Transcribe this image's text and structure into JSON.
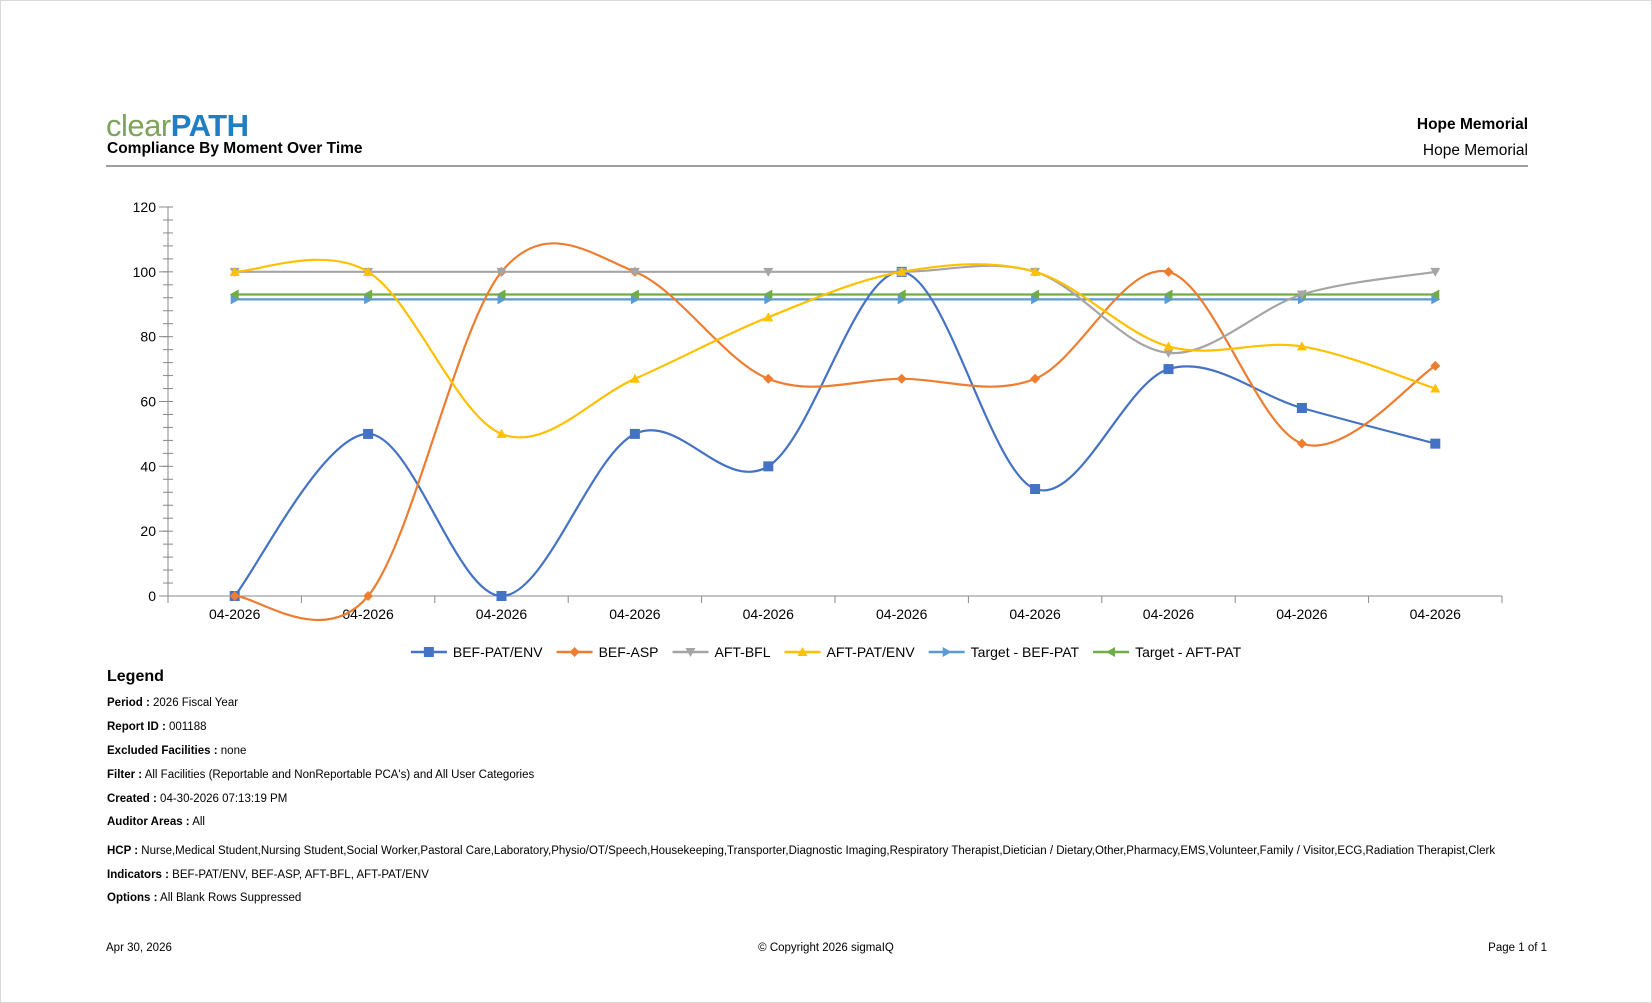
{
  "header": {
    "logo_left": "clear",
    "logo_right": "PATH",
    "report_title": "Compliance By Moment Over Time",
    "facility_bold": "Hope Memorial",
    "facility": "Hope Memorial"
  },
  "chart_data": {
    "type": "line",
    "title": "",
    "xlabel": "",
    "ylabel": "",
    "ylim": [
      0,
      120
    ],
    "y_ticks": [
      0,
      20,
      40,
      60,
      80,
      100,
      120
    ],
    "categories": [
      "04-2026",
      "04-2026",
      "04-2026",
      "04-2026",
      "04-2026",
      "04-2026",
      "04-2026",
      "04-2026",
      "04-2026",
      "04-2026"
    ],
    "legend_position": "bottom",
    "grid": false,
    "smooth": true,
    "series": [
      {
        "name": "BEF-PAT/ENV",
        "color": "#4472c4",
        "marker": "square",
        "values": [
          0,
          50,
          0,
          50,
          40,
          100,
          33,
          70,
          58,
          47
        ]
      },
      {
        "name": "BEF-ASP",
        "color": "#ed7d31",
        "marker": "diamond",
        "values": [
          0,
          0,
          100,
          100,
          67,
          67,
          67,
          100,
          47,
          71
        ]
      },
      {
        "name": "AFT-BFL",
        "color": "#a5a5a5",
        "marker": "triangle-down",
        "values": [
          100,
          100,
          100,
          100,
          100,
          100,
          100,
          75,
          93,
          100
        ]
      },
      {
        "name": "AFT-PAT/ENV",
        "color": "#ffc000",
        "marker": "triangle-up",
        "values": [
          100,
          100,
          50,
          67,
          86,
          100,
          100,
          77,
          77,
          64
        ]
      },
      {
        "name": "Target - BEF-PAT",
        "color": "#5b9bd5",
        "marker": "triangle-right",
        "values": [
          91.5,
          91.5,
          91.5,
          91.5,
          91.5,
          91.5,
          91.5,
          91.5,
          91.5,
          91.5
        ]
      },
      {
        "name": "Target - AFT-PAT",
        "color": "#70ad47",
        "marker": "triangle-left",
        "values": [
          93,
          93,
          93,
          93,
          93,
          93,
          93,
          93,
          93,
          93
        ]
      }
    ]
  },
  "legend": {
    "title": "Legend",
    "items": [
      {
        "label": "Period :",
        "value": "2026 Fiscal Year"
      },
      {
        "label": "Report ID :",
        "value": "001188"
      },
      {
        "label": "Excluded Facilities :",
        "value": "none"
      },
      {
        "label": "Filter :",
        "value": "All Facilities (Reportable and NonReportable PCA's) and All User Categories"
      },
      {
        "label": "Created :",
        "value": "04-30-2026 07:13:19 PM"
      },
      {
        "label": "Auditor Areas :",
        "value": "All"
      },
      {
        "label": "HCP :",
        "value": "Nurse,Medical Student,Nursing Student,Social Worker,Pastoral Care,Laboratory,Physio/OT/Speech,Housekeeping,Transporter,Diagnostic Imaging,Respiratory Therapist,Dietician / Dietary,Other,Pharmacy,EMS,Volunteer,Family / Visitor,ECG,Radiation Therapist,Clerk"
      },
      {
        "label": "Indicators :",
        "value": "BEF-PAT/ENV, BEF-ASP, AFT-BFL, AFT-PAT/ENV"
      },
      {
        "label": "Options :",
        "value": "All Blank Rows Suppressed"
      }
    ]
  },
  "footer": {
    "date": "Apr 30, 2026",
    "copyright": "© Copyright 2026 sigmaIQ",
    "page": "Page 1 of 1"
  }
}
